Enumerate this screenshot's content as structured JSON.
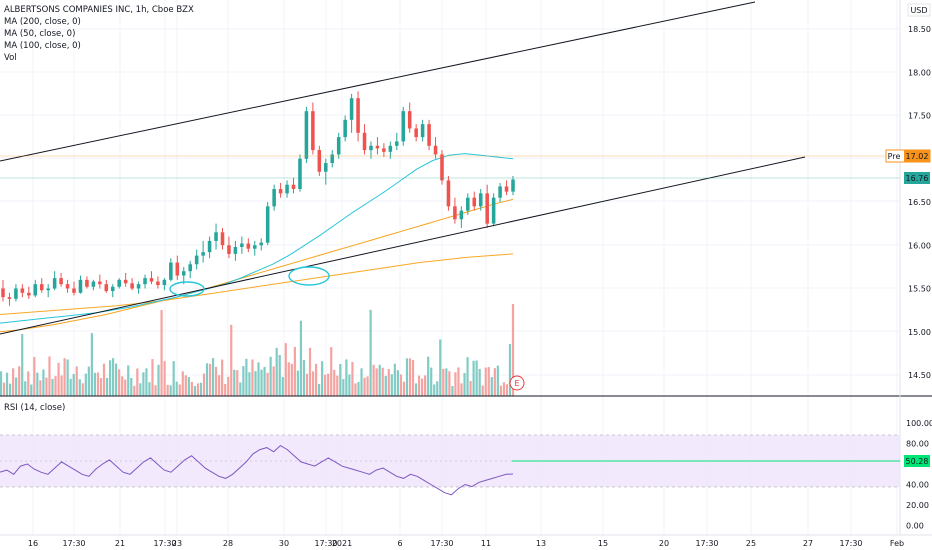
{
  "legend": {
    "symbol": "ALBERTSONS COMPANIES INC, 1h, Cboe BZX",
    "ma200": "MA (200, close, 0)",
    "ma50": "MA (50, close, 0)",
    "ma100": "MA (100, close, 0)",
    "vol": "Vol",
    "rsi": "RSI (14, close)"
  },
  "currency": "USD",
  "price_axis_labels": [
    "18.50",
    "18.00",
    "17.50",
    "17.00",
    "16.50",
    "16.00",
    "15.50",
    "15.00",
    "14.50"
  ],
  "rsi_axis_labels": [
    "100.00",
    "80.00",
    "60.00",
    "40.00",
    "20.00",
    "0.00"
  ],
  "badges": {
    "pre_label": "Pre",
    "pre_price": "17.02",
    "last_price": "16.76",
    "rsi_value": "50.28",
    "earnings_mark": "E"
  },
  "time_axis_labels": [
    "16",
    "17:30",
    "21",
    "17:30",
    "23",
    "28",
    "30",
    "17:30",
    "2021",
    "6",
    "17:30",
    "11",
    "13",
    "15",
    "20",
    "17:30",
    "25",
    "27",
    "17:30",
    "Feb"
  ],
  "colors": {
    "up": "#26a69a",
    "down": "#ef5350",
    "vol_up": "#80cbc4",
    "vol_down": "#f4a3a0",
    "ma50": "#26c6da",
    "ma100": "#f7a21b",
    "ma200": "#f9a825",
    "rsi_line": "#7e57c2",
    "rsi_band": "#ede0fb",
    "pre_color": "#f7931a",
    "last_color": "#26a69a",
    "rsi_badge": "#00e676",
    "earnings": "#e53935"
  },
  "chart_data": [
    {
      "type": "line",
      "title": "ALBERTSONS COMPANIES INC, 1h, Cboe BZX",
      "ylim": [
        14.3,
        18.7
      ],
      "candles_note": "hourly OHLC, approximate",
      "candles": [
        [
          15.5,
          15.6,
          15.35,
          15.4
        ],
        [
          15.4,
          15.45,
          15.3,
          15.38
        ],
        [
          15.38,
          15.55,
          15.35,
          15.5
        ],
        [
          15.5,
          15.55,
          15.4,
          15.45
        ],
        [
          15.45,
          15.52,
          15.38,
          15.42
        ],
        [
          15.42,
          15.6,
          15.4,
          15.55
        ],
        [
          15.55,
          15.62,
          15.45,
          15.48
        ],
        [
          15.48,
          15.55,
          15.4,
          15.5
        ],
        [
          15.5,
          15.7,
          15.48,
          15.62
        ],
        [
          15.62,
          15.68,
          15.52,
          15.55
        ],
        [
          15.55,
          15.6,
          15.45,
          15.5
        ],
        [
          15.5,
          15.58,
          15.42,
          15.45
        ],
        [
          15.45,
          15.65,
          15.44,
          15.6
        ],
        [
          15.6,
          15.64,
          15.5,
          15.52
        ],
        [
          15.52,
          15.6,
          15.48,
          15.58
        ],
        [
          15.58,
          15.66,
          15.5,
          15.55
        ],
        [
          15.55,
          15.6,
          15.45,
          15.47
        ],
        [
          15.47,
          15.55,
          15.4,
          15.52
        ],
        [
          15.52,
          15.62,
          15.5,
          15.6
        ],
        [
          15.6,
          15.68,
          15.52,
          15.56
        ],
        [
          15.56,
          15.62,
          15.48,
          15.5
        ],
        [
          15.5,
          15.58,
          15.44,
          15.55
        ],
        [
          15.55,
          15.66,
          15.5,
          15.62
        ],
        [
          15.62,
          15.7,
          15.55,
          15.58
        ],
        [
          15.58,
          15.64,
          15.5,
          15.54
        ],
        [
          15.54,
          15.62,
          15.48,
          15.6
        ],
        [
          15.6,
          15.85,
          15.58,
          15.8
        ],
        [
          15.8,
          15.88,
          15.6,
          15.65
        ],
        [
          15.65,
          15.75,
          15.55,
          15.7
        ],
        [
          15.7,
          15.82,
          15.62,
          15.78
        ],
        [
          15.78,
          15.95,
          15.72,
          15.88
        ],
        [
          15.88,
          16.05,
          15.8,
          15.92
        ],
        [
          15.92,
          16.1,
          15.85,
          16.05
        ],
        [
          16.05,
          16.25,
          15.95,
          16.15
        ],
        [
          16.15,
          16.2,
          15.95,
          16.0
        ],
        [
          16.0,
          16.1,
          15.85,
          15.9
        ],
        [
          15.9,
          16.05,
          15.82,
          15.98
        ],
        [
          15.98,
          16.1,
          15.9,
          16.02
        ],
        [
          16.02,
          16.08,
          15.92,
          15.96
        ],
        [
          15.96,
          16.05,
          15.88,
          16.0
        ],
        [
          16.0,
          16.08,
          15.94,
          16.03
        ],
        [
          16.03,
          16.5,
          16.0,
          16.45
        ],
        [
          16.45,
          16.7,
          16.4,
          16.65
        ],
        [
          16.65,
          16.72,
          16.55,
          16.6
        ],
        [
          16.6,
          16.75,
          16.55,
          16.7
        ],
        [
          16.7,
          16.78,
          16.6,
          16.65
        ],
        [
          16.65,
          17.05,
          16.62,
          17.0
        ],
        [
          17.0,
          17.6,
          16.95,
          17.55
        ],
        [
          17.55,
          17.65,
          17.05,
          17.1
        ],
        [
          17.1,
          17.15,
          16.8,
          16.85
        ],
        [
          16.85,
          17.0,
          16.7,
          16.95
        ],
        [
          16.95,
          17.1,
          16.9,
          17.05
        ],
        [
          17.05,
          17.3,
          17.0,
          17.25
        ],
        [
          17.25,
          17.5,
          17.2,
          17.45
        ],
        [
          17.45,
          17.75,
          17.3,
          17.7
        ],
        [
          17.7,
          17.78,
          17.2,
          17.3
        ],
        [
          17.3,
          17.4,
          17.05,
          17.1
        ],
        [
          17.1,
          17.2,
          17.0,
          17.15
        ],
        [
          17.15,
          17.25,
          17.05,
          17.12
        ],
        [
          17.12,
          17.18,
          17.02,
          17.08
        ],
        [
          17.08,
          17.2,
          17.0,
          17.15
        ],
        [
          17.15,
          17.3,
          17.1,
          17.2
        ],
        [
          17.2,
          17.6,
          17.15,
          17.55
        ],
        [
          17.55,
          17.65,
          17.3,
          17.35
        ],
        [
          17.35,
          17.4,
          17.2,
          17.25
        ],
        [
          17.25,
          17.45,
          17.2,
          17.4
        ],
        [
          17.4,
          17.45,
          17.1,
          17.15
        ],
        [
          17.15,
          17.25,
          17.0,
          17.05
        ],
        [
          17.05,
          17.1,
          16.7,
          16.75
        ],
        [
          16.75,
          16.8,
          16.4,
          16.45
        ],
        [
          16.45,
          16.55,
          16.25,
          16.3
        ],
        [
          16.3,
          16.45,
          16.2,
          16.4
        ],
        [
          16.4,
          16.6,
          16.35,
          16.55
        ],
        [
          16.55,
          16.62,
          16.4,
          16.45
        ],
        [
          16.45,
          16.65,
          16.4,
          16.6
        ],
        [
          16.6,
          16.7,
          16.2,
          16.25
        ],
        [
          16.25,
          16.6,
          16.22,
          16.55
        ],
        [
          16.55,
          16.72,
          16.5,
          16.68
        ],
        [
          16.68,
          16.75,
          16.58,
          16.62
        ],
        [
          16.62,
          16.8,
          16.58,
          16.76
        ]
      ],
      "ma50": [
        15.1,
        15.12,
        15.14,
        15.16,
        15.18,
        15.2,
        15.22,
        15.25,
        15.28,
        15.32,
        15.36,
        15.4,
        15.45,
        15.5,
        15.55,
        15.62,
        15.7,
        15.78,
        15.88,
        16.0,
        16.12,
        16.25,
        16.38,
        16.5,
        16.62,
        16.75,
        16.88,
        16.98,
        17.04,
        17.06,
        17.04,
        17.02,
        17.0
      ],
      "ma100": [
        15.0,
        15.02,
        15.05,
        15.08,
        15.12,
        15.16,
        15.2,
        15.25,
        15.3,
        15.35,
        15.4,
        15.46,
        15.52,
        15.58,
        15.64,
        15.7,
        15.76,
        15.82,
        15.88,
        15.94,
        16.0,
        16.06,
        16.12,
        16.18,
        16.24,
        16.3,
        16.36,
        16.42,
        16.48,
        16.53
      ],
      "ma200": [
        15.2,
        15.22,
        15.24,
        15.26,
        15.28,
        15.3,
        15.33,
        15.36,
        15.4,
        15.44,
        15.48,
        15.52,
        15.56,
        15.6,
        15.64,
        15.68,
        15.72,
        15.76,
        15.8,
        15.83,
        15.86,
        15.88,
        15.9
      ]
    },
    {
      "type": "line",
      "title": "RSI (14, close)",
      "ylim": [
        0,
        100
      ],
      "band": [
        30,
        70
      ],
      "values": [
        52,
        54,
        50,
        58,
        60,
        55,
        52,
        50,
        56,
        62,
        58,
        54,
        50,
        48,
        55,
        60,
        64,
        58,
        52,
        50,
        56,
        62,
        66,
        60,
        54,
        52,
        58,
        64,
        68,
        62,
        56,
        52,
        48,
        46,
        50,
        56,
        62,
        70,
        74,
        76,
        72,
        78,
        74,
        68,
        62,
        60,
        58,
        62,
        66,
        62,
        58,
        56,
        54,
        52,
        50,
        54,
        56,
        52,
        48,
        46,
        50,
        48,
        44,
        40,
        36,
        32,
        30,
        36,
        40,
        38,
        42,
        44,
        46,
        48,
        50,
        50.28
      ]
    }
  ]
}
